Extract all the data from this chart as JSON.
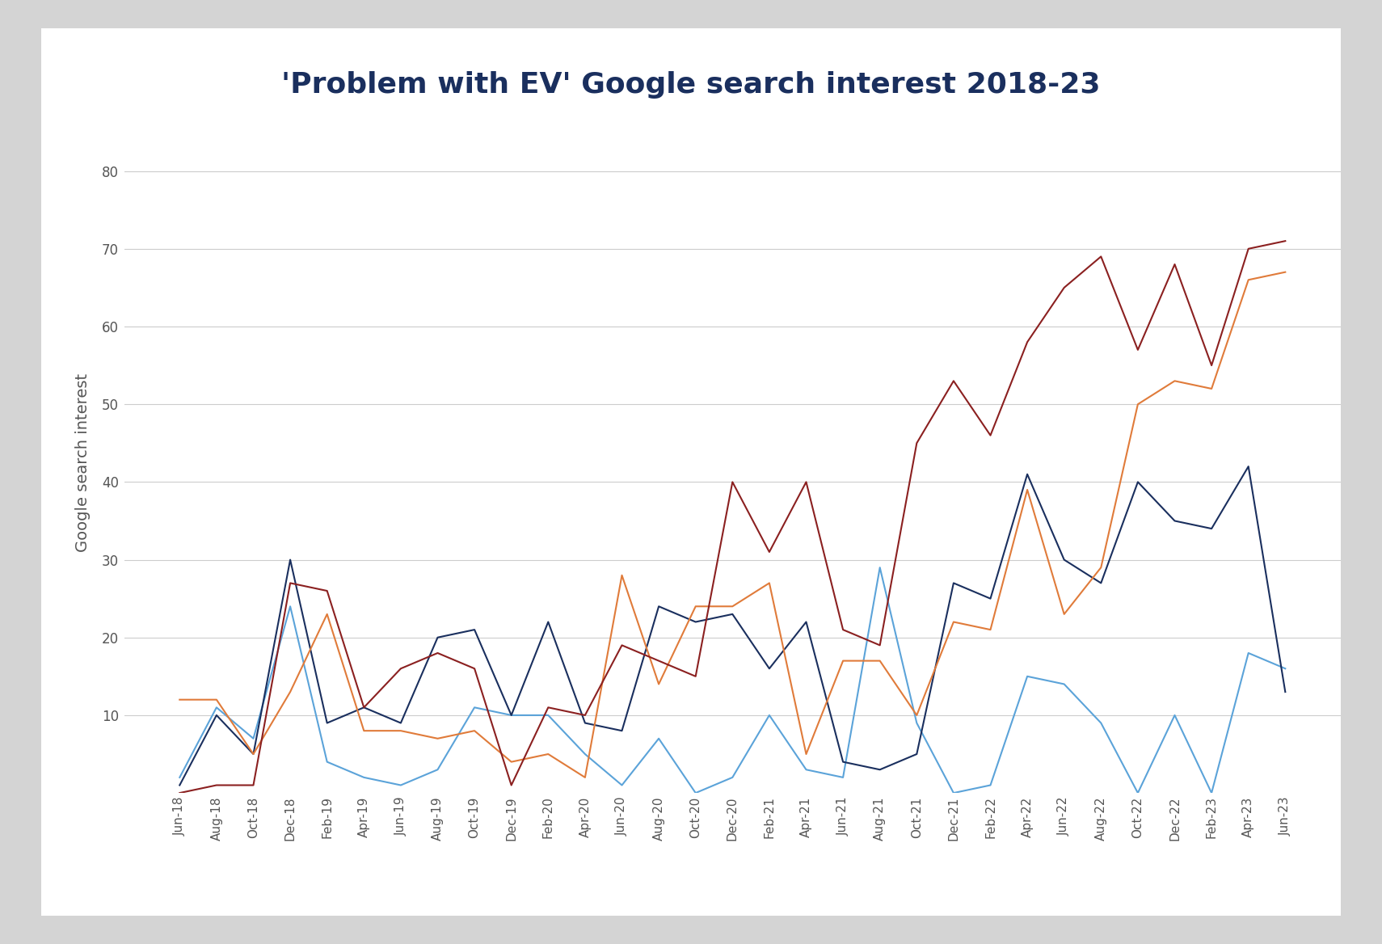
{
  "title": "'Problem with EV' Google search interest 2018-23",
  "ylabel": "Google search interest",
  "outer_bg_color": "#d4d4d4",
  "card_bg_color": "#ffffff",
  "title_color": "#1a2f5e",
  "title_fontsize": 26,
  "ylabel_fontsize": 14,
  "tick_labels": [
    "Jun-18",
    "Aug-18",
    "Oct-18",
    "Dec-18",
    "Feb-19",
    "Apr-19",
    "Jun-19",
    "Aug-19",
    "Oct-19",
    "Dec-19",
    "Feb-20",
    "Apr-20",
    "Jun-20",
    "Aug-20",
    "Oct-20",
    "Dec-20",
    "Feb-21",
    "Apr-21",
    "Jun-21",
    "Aug-21",
    "Oct-21",
    "Dec-21",
    "Feb-22",
    "Apr-22",
    "Jun-22",
    "Aug-22",
    "Oct-22",
    "Dec-22",
    "Feb-23",
    "Apr-23",
    "Jun-23"
  ],
  "series": {
    "EV out of range": {
      "color": "#5ba3d9",
      "values": [
        2,
        11,
        7,
        24,
        4,
        2,
        1,
        3,
        11,
        10,
        10,
        5,
        1,
        7,
        0,
        2,
        10,
        3,
        2,
        29,
        9,
        0,
        1,
        15,
        14,
        9,
        0,
        10,
        0,
        18,
        16
      ]
    },
    "EV not working": {
      "color": "#1a2f5e",
      "values": [
        1,
        10,
        5,
        30,
        9,
        11,
        9,
        20,
        21,
        10,
        22,
        9,
        8,
        24,
        22,
        23,
        16,
        22,
        4,
        3,
        5,
        27,
        25,
        41,
        30,
        27,
        40,
        35,
        34,
        42,
        13
      ]
    },
    "EV not charging": {
      "color": "#e07b3a",
      "values": [
        12,
        12,
        5,
        13,
        23,
        8,
        8,
        7,
        8,
        4,
        5,
        2,
        28,
        14,
        24,
        24,
        27,
        5,
        17,
        17,
        10,
        22,
        21,
        39,
        23,
        29,
        50,
        53,
        52,
        66,
        67
      ]
    },
    "EV expensive": {
      "color": "#8b2020",
      "values": [
        0,
        1,
        1,
        27,
        26,
        11,
        16,
        18,
        16,
        1,
        11,
        10,
        19,
        17,
        15,
        40,
        31,
        40,
        21,
        19,
        45,
        53,
        46,
        58,
        65,
        69,
        57,
        68,
        55,
        70,
        71
      ]
    }
  },
  "ylim": [
    0,
    85
  ],
  "yticks": [
    10,
    20,
    30,
    40,
    50,
    60,
    70,
    80
  ],
  "legend_fontsize": 13,
  "grid_color": "#cccccc",
  "tick_fontsize": 11,
  "axis_color": "#555555"
}
